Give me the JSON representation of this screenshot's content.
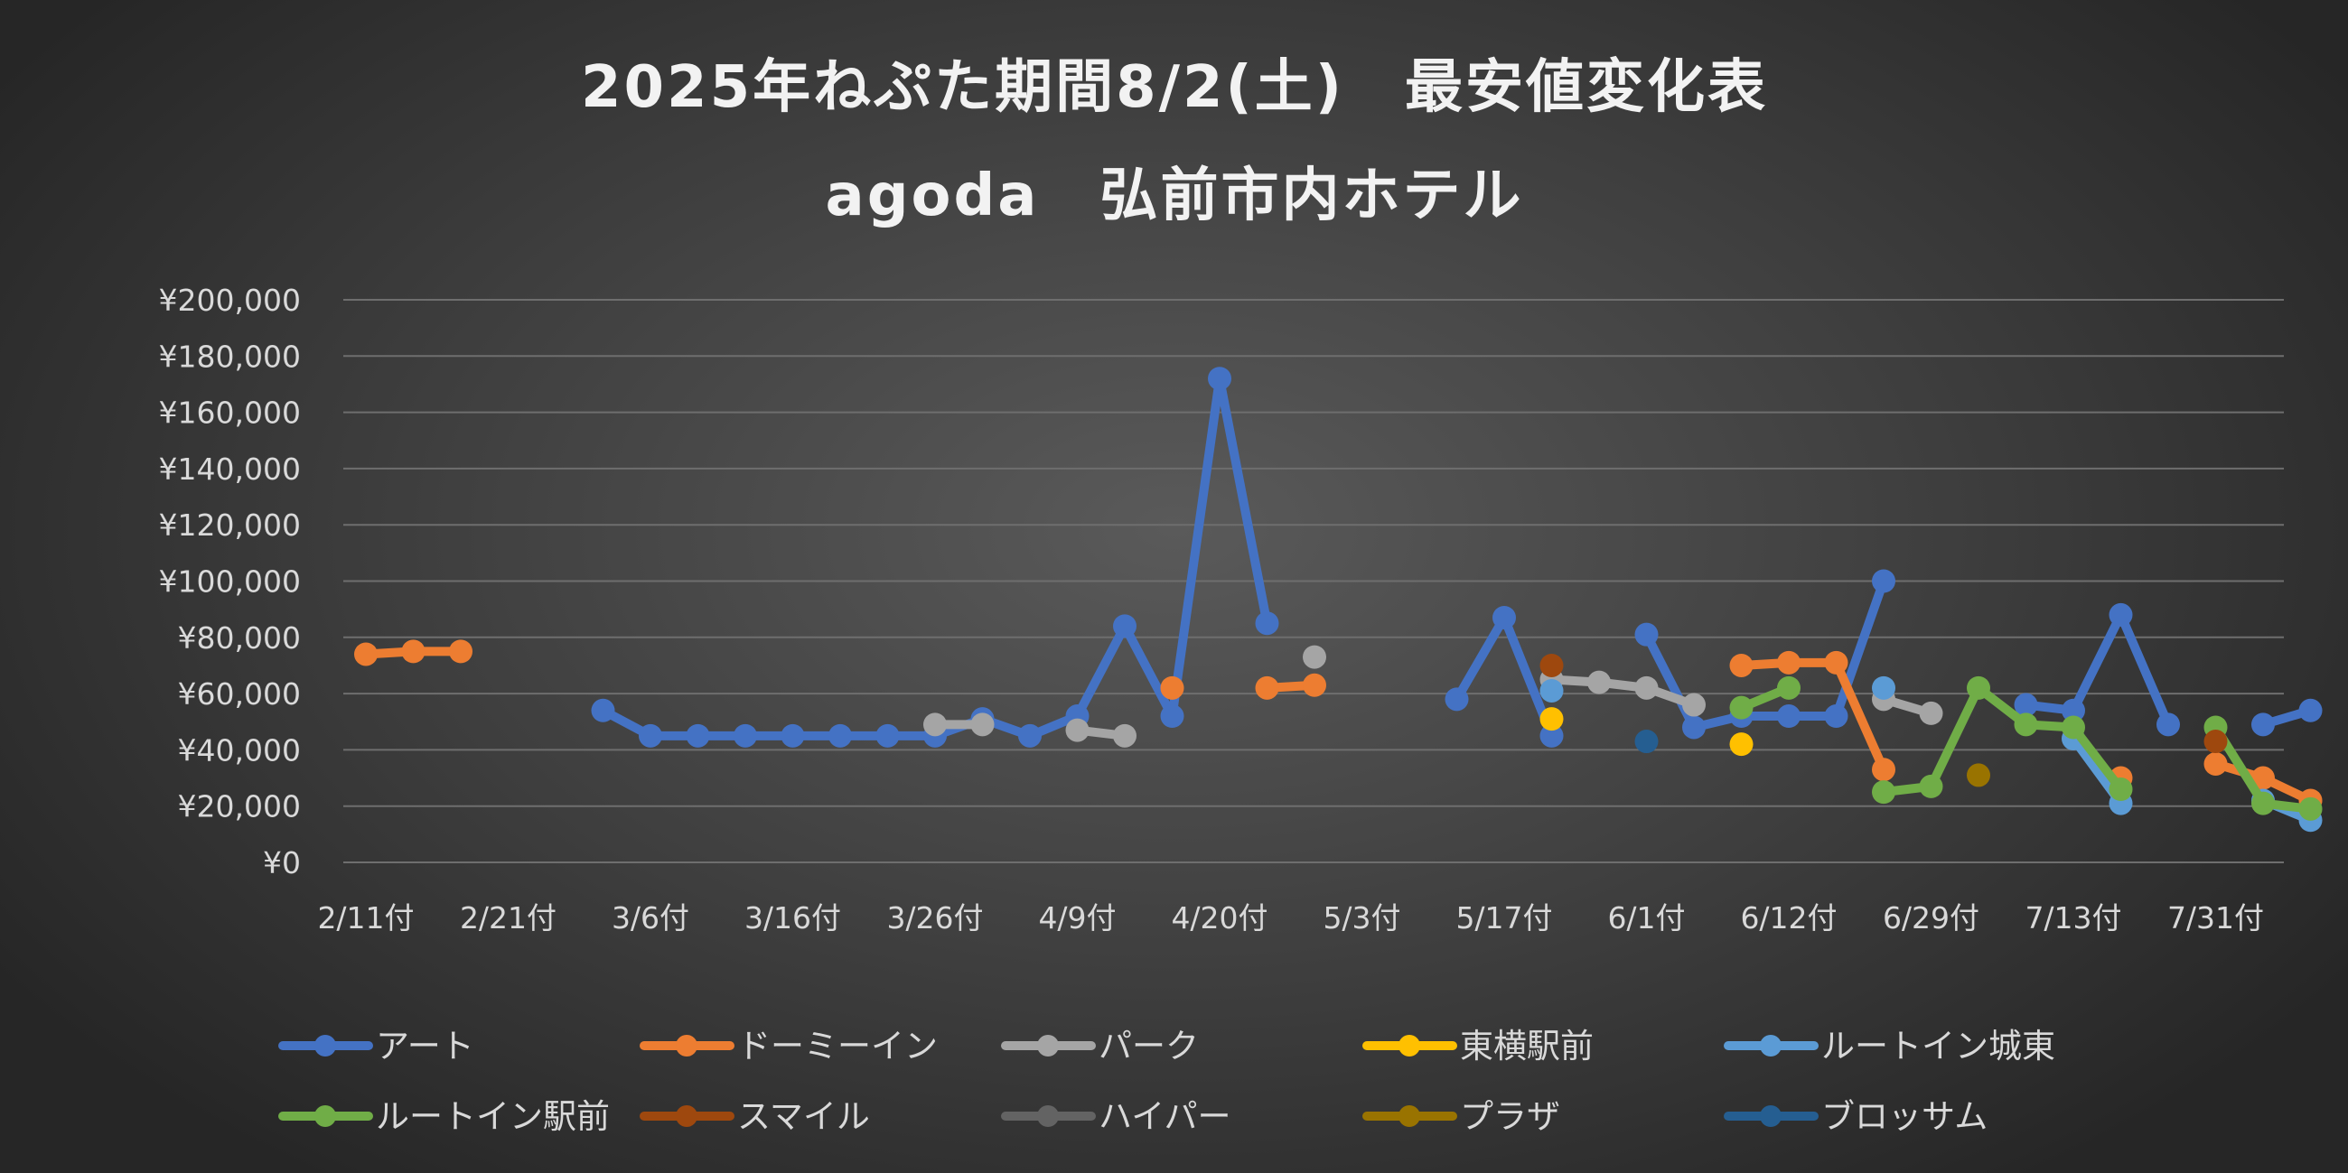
{
  "chart_data": {
    "type": "line",
    "title": "2025年ねぷた期間8/2(土)　最安値変化表",
    "subtitle": "agoda　弘前市内ホテル",
    "xlabel": "",
    "ylabel": "",
    "ylim": [
      0,
      200000
    ],
    "yticks": [
      "¥200,000",
      "¥180,000",
      "¥160,000",
      "¥140,000",
      "¥120,000",
      "¥100,000",
      "¥80,000",
      "¥60,000",
      "¥40,000",
      "¥20,000",
      "¥0"
    ],
    "xtick_labels": [
      "2/11付",
      "2/21付",
      "3/6付",
      "3/16付",
      "3/26付",
      "4/9付",
      "4/20付",
      "5/3付",
      "5/17付",
      "6/1付",
      "6/12付",
      "6/29付",
      "7/13付",
      "7/31付"
    ],
    "grid": true,
    "legend_position": "bottom",
    "series": [
      {
        "name": "アート",
        "color": "#4472c4",
        "values": [
          null,
          null,
          null,
          null,
          null,
          54000,
          45000,
          45000,
          45000,
          45000,
          45000,
          45000,
          45000,
          51000,
          45000,
          52000,
          84000,
          52000,
          172000,
          85000,
          null,
          null,
          null,
          58000,
          87000,
          45000,
          null,
          81000,
          48000,
          52000,
          52000,
          52000,
          100000,
          null,
          null,
          56000,
          54000,
          88000,
          49000,
          null,
          49000,
          54000
        ]
      },
      {
        "name": "ドーミーイン",
        "color": "#ed7d31",
        "values": [
          74000,
          75000,
          75000,
          null,
          null,
          null,
          null,
          null,
          null,
          null,
          null,
          null,
          null,
          null,
          null,
          null,
          null,
          62000,
          null,
          62000,
          63000,
          null,
          null,
          null,
          null,
          null,
          null,
          null,
          null,
          70000,
          71000,
          71000,
          33000,
          null,
          null,
          null,
          null,
          30000,
          null,
          35000,
          30000,
          22000
        ]
      },
      {
        "name": "パーク",
        "color": "#a5a5a5",
        "values": [
          null,
          null,
          null,
          null,
          null,
          null,
          null,
          null,
          null,
          null,
          null,
          null,
          49000,
          49000,
          null,
          47000,
          45000,
          null,
          null,
          null,
          73000,
          null,
          null,
          null,
          null,
          65000,
          64000,
          62000,
          56000,
          null,
          null,
          null,
          58000,
          53000,
          null,
          null,
          null,
          null,
          null,
          null,
          null,
          null
        ]
      },
      {
        "name": "東横駅前",
        "color": "#ffc000",
        "values": [
          null,
          null,
          null,
          null,
          null,
          null,
          null,
          null,
          null,
          null,
          null,
          null,
          null,
          null,
          null,
          null,
          null,
          null,
          null,
          null,
          null,
          null,
          null,
          null,
          null,
          51000,
          null,
          null,
          null,
          42000,
          null,
          null,
          null,
          null,
          null,
          null,
          null,
          null,
          null,
          null,
          null,
          null
        ]
      },
      {
        "name": "ルートイン城東",
        "color": "#5b9bd5",
        "values": [
          null,
          null,
          null,
          null,
          null,
          null,
          null,
          null,
          null,
          null,
          null,
          null,
          null,
          null,
          null,
          null,
          null,
          null,
          null,
          null,
          null,
          null,
          null,
          null,
          null,
          61000,
          null,
          null,
          null,
          null,
          null,
          null,
          62000,
          null,
          null,
          null,
          44000,
          21000,
          null,
          null,
          22000,
          15000
        ]
      },
      {
        "name": "ルートイン駅前",
        "color": "#70ad47",
        "values": [
          null,
          null,
          null,
          null,
          null,
          null,
          null,
          null,
          null,
          null,
          null,
          null,
          null,
          null,
          null,
          null,
          null,
          null,
          null,
          null,
          null,
          null,
          null,
          null,
          null,
          null,
          null,
          null,
          null,
          55000,
          62000,
          null,
          25000,
          27000,
          62000,
          49000,
          48000,
          26000,
          null,
          48000,
          21000,
          19000
        ]
      },
      {
        "name": "スマイル",
        "color": "#9e480e",
        "values": [
          null,
          null,
          null,
          null,
          null,
          null,
          null,
          null,
          null,
          null,
          null,
          null,
          null,
          null,
          null,
          null,
          null,
          null,
          null,
          null,
          null,
          null,
          null,
          null,
          null,
          70000,
          null,
          null,
          null,
          null,
          null,
          null,
          null,
          null,
          null,
          null,
          null,
          null,
          null,
          43000,
          null,
          null
        ]
      },
      {
        "name": "ハイパー",
        "color": "#636363",
        "values": [
          null,
          null,
          null,
          null,
          null,
          null,
          null,
          null,
          null,
          null,
          null,
          null,
          null,
          null,
          null,
          null,
          null,
          null,
          null,
          null,
          null,
          null,
          null,
          null,
          null,
          null,
          null,
          null,
          null,
          null,
          null,
          null,
          null,
          null,
          null,
          null,
          null,
          null,
          null,
          null,
          null,
          null
        ]
      },
      {
        "name": "プラザ",
        "color": "#997300",
        "values": [
          null,
          null,
          null,
          null,
          null,
          null,
          null,
          null,
          null,
          null,
          null,
          null,
          null,
          null,
          null,
          null,
          null,
          null,
          null,
          null,
          null,
          null,
          null,
          null,
          null,
          null,
          null,
          null,
          null,
          null,
          null,
          null,
          null,
          null,
          31000,
          null,
          null,
          null,
          null,
          null,
          null,
          null
        ]
      },
      {
        "name": "ブロッサム",
        "color": "#255e91",
        "values": [
          null,
          null,
          null,
          null,
          null,
          null,
          null,
          null,
          null,
          null,
          null,
          null,
          null,
          null,
          null,
          null,
          null,
          null,
          null,
          null,
          null,
          null,
          null,
          null,
          null,
          null,
          null,
          43000,
          null,
          null,
          null,
          null,
          null,
          null,
          null,
          null,
          null,
          null,
          null,
          null,
          null,
          null
        ]
      }
    ]
  }
}
